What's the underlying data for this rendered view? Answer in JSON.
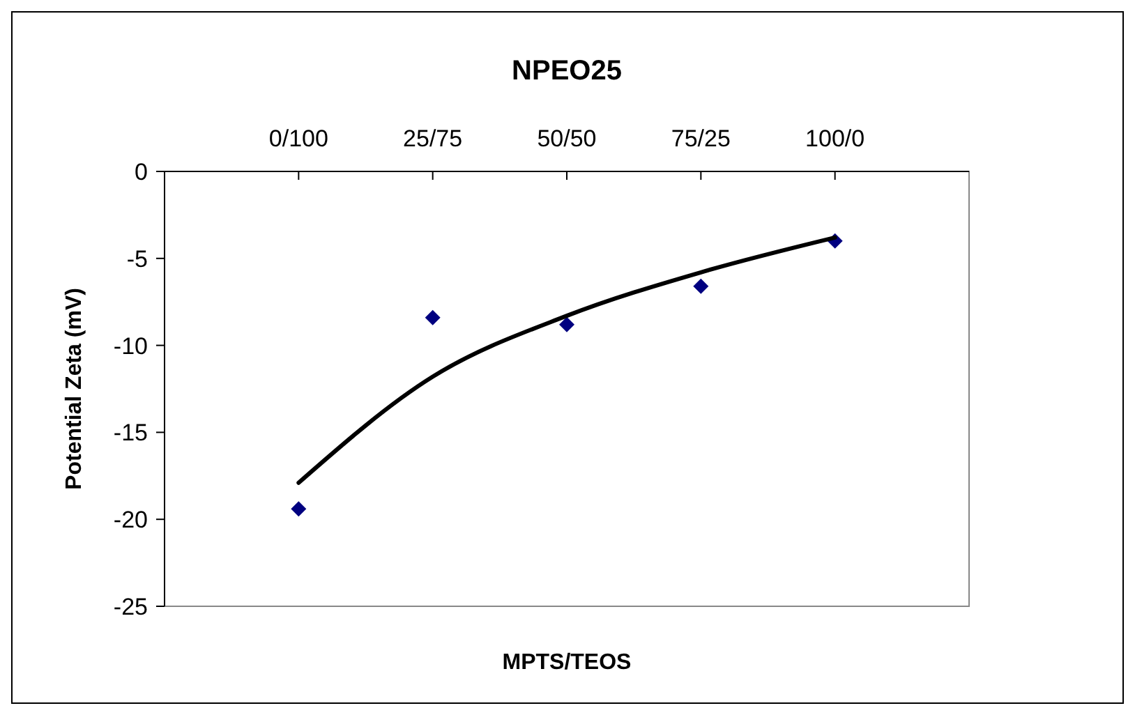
{
  "chart_data": {
    "type": "scatter",
    "title": "NPEO25",
    "xlabel": "MPTS/TEOS",
    "ylabel": "Potential Zeta (mV)",
    "categories": [
      "0/100",
      "25/75",
      "50/50",
      "75/25",
      "100/0"
    ],
    "series": [
      {
        "color": "#000080",
        "marker": "diamond",
        "values": [
          -19.4,
          -8.4,
          -8.8,
          -6.6,
          -4.0
        ]
      },
      {
        "type": "line",
        "color": "#000000",
        "marker": "none",
        "line_style": "solid",
        "values": [
          -17.9,
          -11.8,
          -8.3,
          -5.8,
          -3.8
        ]
      }
    ],
    "ylim": [
      -25,
      0
    ],
    "yticks": [
      0,
      -5,
      -10,
      -15,
      -20,
      -25
    ],
    "grid": false
  }
}
